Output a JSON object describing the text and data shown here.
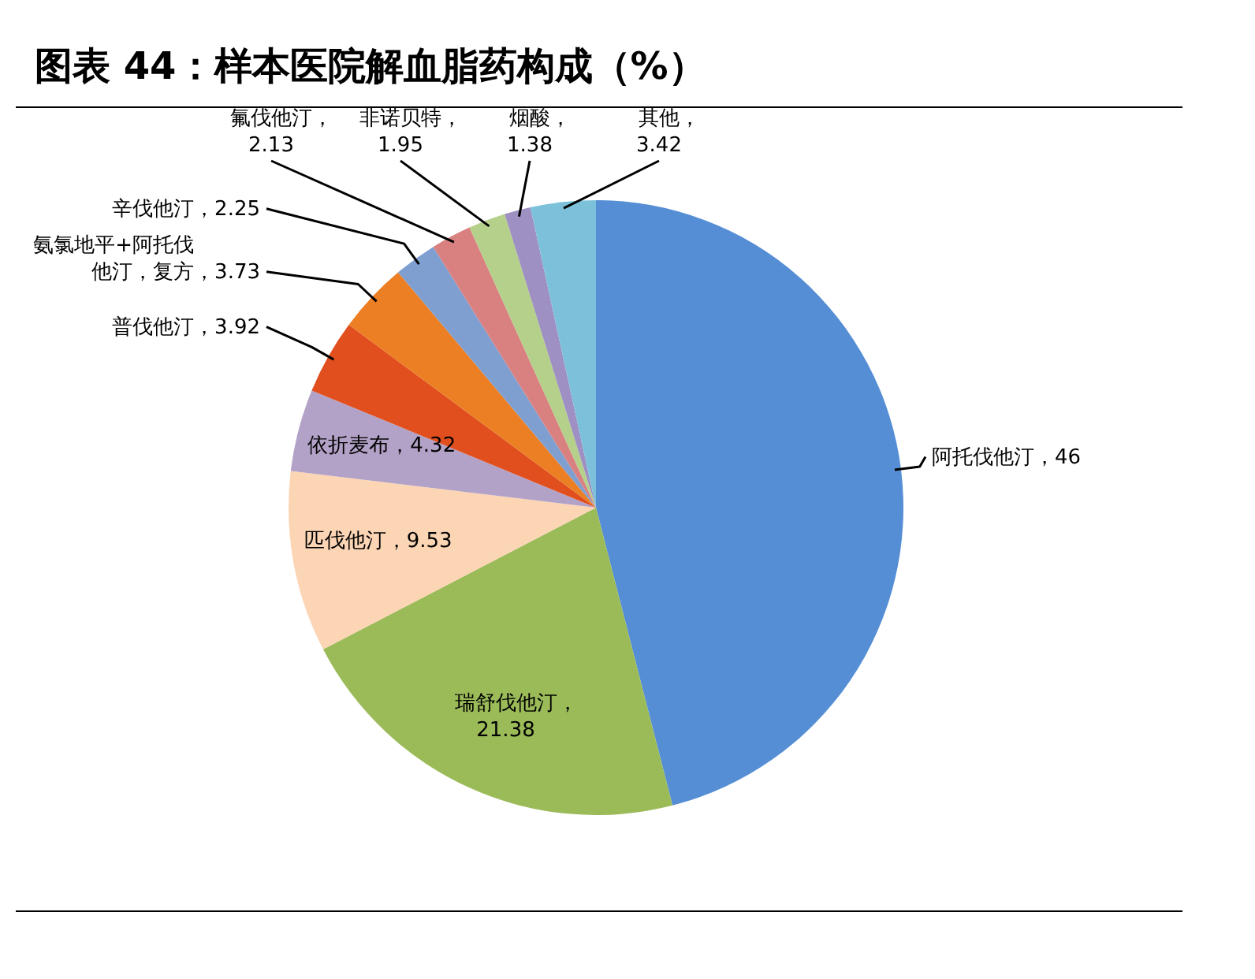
{
  "chart_data": {
    "type": "pie",
    "title": "图表 44：样本医院解血脂药构成（%）",
    "categories": [
      "阿托伐他汀",
      "瑞舒伐他汀",
      "匹伐他汀",
      "依折麦布",
      "普伐他汀",
      "氨氯地平+阿托伐他汀，复方",
      "辛伐他汀",
      "氟伐他汀",
      "非诺贝特",
      "烟酸",
      "其他"
    ],
    "values": [
      46,
      21.38,
      9.53,
      4.32,
      3.92,
      3.73,
      2.25,
      2.13,
      1.95,
      1.38,
      3.42
    ],
    "colors": [
      "#558ed5",
      "#9bbb59",
      "#fcd5b5",
      "#b3a2c7",
      "#e04f1d",
      "#ec7f24",
      "#7f9fd0",
      "#d98080",
      "#b5d08a",
      "#9e90c2",
      "#7cc1d9"
    ],
    "value_labels": [
      "，46",
      "，21.38",
      "，9.53",
      "，4.32",
      "，3.92",
      "，3.73",
      "，2.25",
      "，2.13",
      "，1.95",
      "，1.38",
      "，3.42"
    ]
  }
}
